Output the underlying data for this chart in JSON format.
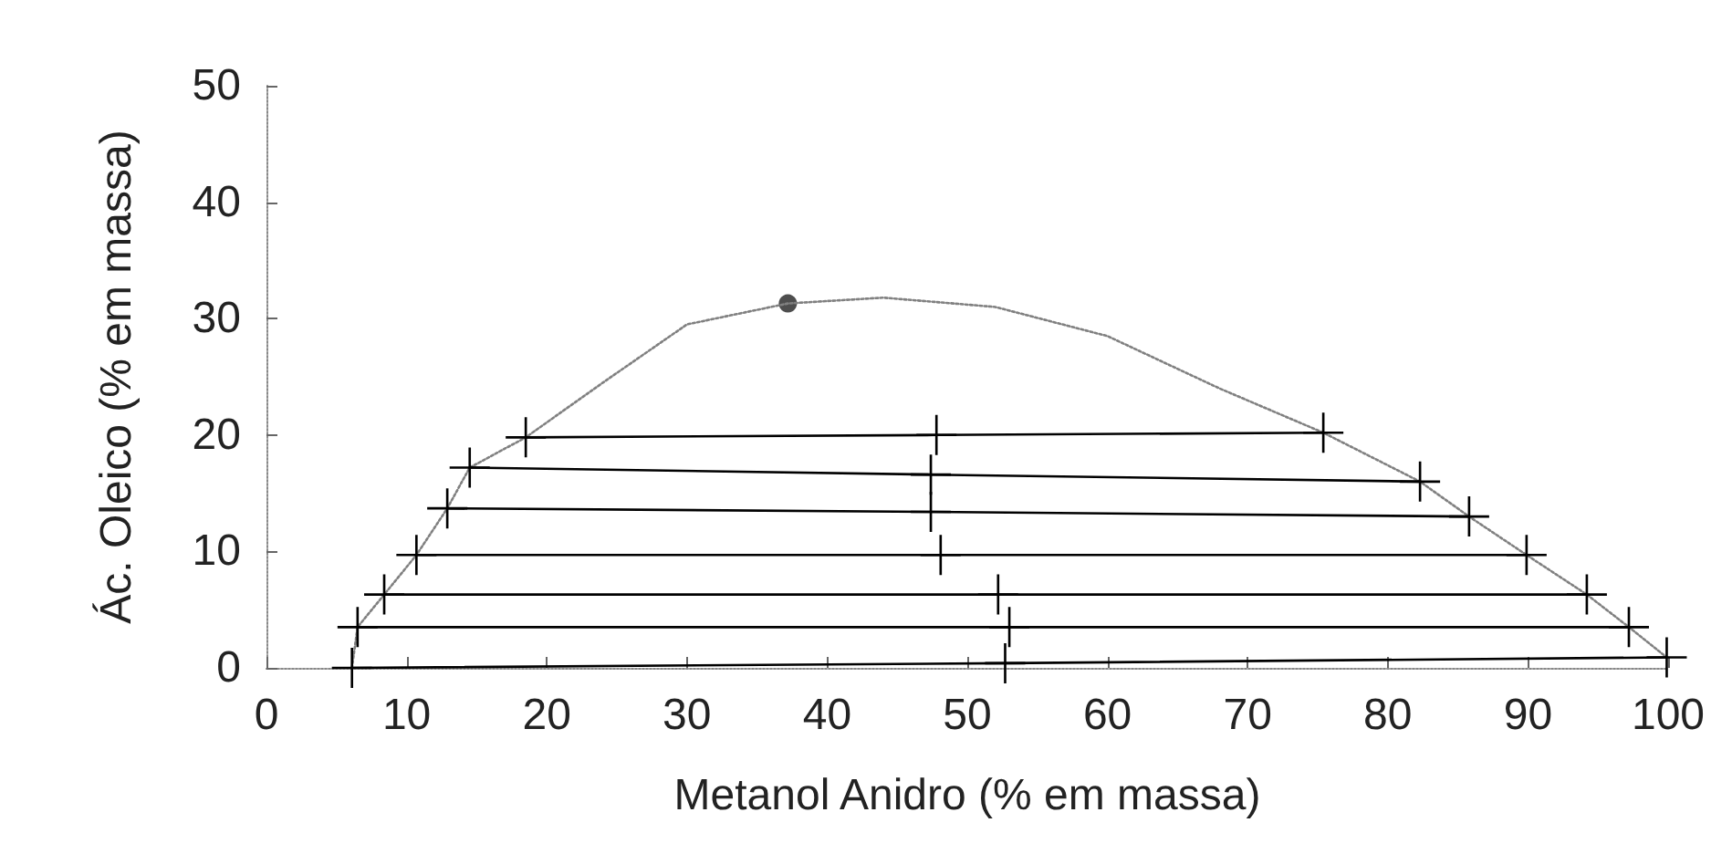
{
  "chart_data": {
    "type": "line",
    "xlabel": "Metanol Anidro (% em massa)",
    "ylabel": "Ác. Oleico (% em massa)",
    "xlim": [
      0,
      100
    ],
    "xticks": [
      0,
      10,
      20,
      30,
      40,
      50,
      60,
      70,
      80,
      90,
      100
    ],
    "ylim": [
      0,
      50
    ],
    "yticks": [
      0,
      10,
      20,
      30,
      40,
      50
    ],
    "grid": false,
    "series": [
      {
        "color": "#808080",
        "marker": "none",
        "line_style": "dotted",
        "x": [
          6.1,
          6.5,
          8.4,
          10.7,
          12.9,
          14.5,
          18.5,
          24,
          30,
          37.2,
          44,
          52,
          60,
          68,
          75.4,
          82.3,
          85.8,
          89.9,
          94.2,
          97.2,
          99.9
        ],
        "values": [
          0,
          3.5,
          6.3,
          9.7,
          13.7,
          17.2,
          19.8,
          24.5,
          29.5,
          31.3,
          31.8,
          31,
          28.5,
          24,
          20.2,
          16,
          13,
          9.7,
          6.3,
          3.5,
          0.9
        ]
      },
      {
        "color": "#000000",
        "marker": "cross",
        "line_style": "solid",
        "x": [
          18.5,
          47.8,
          75.4
        ],
        "values": [
          19.8,
          20,
          20.2
        ]
      },
      {
        "color": "#000000",
        "marker": "cross",
        "line_style": "solid",
        "x": [
          14.5,
          47.4,
          82.3
        ],
        "values": [
          17.2,
          16.6,
          16
        ]
      },
      {
        "color": "#000000",
        "marker": "cross",
        "line_style": "solid",
        "x": [
          12.9,
          47.4,
          85.8
        ],
        "values": [
          13.7,
          13.4,
          13
        ]
      },
      {
        "color": "#000000",
        "marker": "cross",
        "line_style": "solid",
        "x": [
          10.7,
          48.1,
          89.9
        ],
        "values": [
          9.7,
          9.7,
          9.7
        ]
      },
      {
        "color": "#000000",
        "marker": "cross",
        "line_style": "solid",
        "x": [
          8.4,
          52.2,
          94.2
        ],
        "values": [
          6.3,
          6.3,
          6.3
        ]
      },
      {
        "color": "#000000",
        "marker": "cross",
        "line_style": "solid",
        "x": [
          6.5,
          53,
          97.2
        ],
        "values": [
          3.5,
          3.5,
          3.5
        ]
      },
      {
        "color": "#000000",
        "marker": "cross",
        "line_style": "solid",
        "x": [
          6.1,
          52.7,
          99.9
        ],
        "values": [
          0,
          0.4,
          0.9
        ]
      },
      {
        "type": "scatter",
        "color": "#222222",
        "marker": "circle",
        "x": [
          37.2
        ],
        "values": [
          31.3
        ]
      }
    ]
  }
}
